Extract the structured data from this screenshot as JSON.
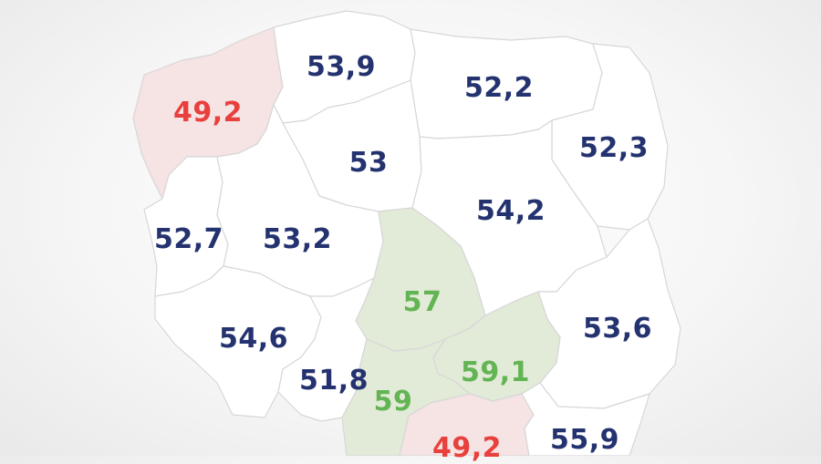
{
  "colors": {
    "default_fill": "#ffffff",
    "border": "#d7d7d7",
    "high_fill": "#e2ead8",
    "low_fill": "#f6e3e3",
    "default_text": "#24336f",
    "high_text": "#63b453",
    "low_text": "#e8403d"
  },
  "regions": [
    {
      "id": "zachodniopomorskie",
      "value": "49,2",
      "status": "low"
    },
    {
      "id": "pomorskie",
      "value": "53,9",
      "status": "normal"
    },
    {
      "id": "warminsko-mazurskie",
      "value": "52,2",
      "status": "normal"
    },
    {
      "id": "podlaskie",
      "value": "52,3",
      "status": "normal"
    },
    {
      "id": "kujawsko-pomorskie",
      "value": "53",
      "status": "normal"
    },
    {
      "id": "mazowieckie",
      "value": "54,2",
      "status": "normal"
    },
    {
      "id": "lubuskie",
      "value": "52,7",
      "status": "normal"
    },
    {
      "id": "wielkopolskie",
      "value": "53,2",
      "status": "normal"
    },
    {
      "id": "lodzkie",
      "value": "57",
      "status": "high"
    },
    {
      "id": "dolnoslaskie",
      "value": "54,6",
      "status": "normal"
    },
    {
      "id": "lubelskie",
      "value": "53,6",
      "status": "normal"
    },
    {
      "id": "swietokrzyskie",
      "value": "59,1",
      "status": "high"
    },
    {
      "id": "opolskie",
      "value": "51,8",
      "status": "normal"
    },
    {
      "id": "slaskie",
      "value": "59",
      "status": "high"
    },
    {
      "id": "malopolskie",
      "value": "49,2",
      "status": "low"
    },
    {
      "id": "podkarpackie",
      "value": "55,9",
      "status": "normal"
    }
  ]
}
